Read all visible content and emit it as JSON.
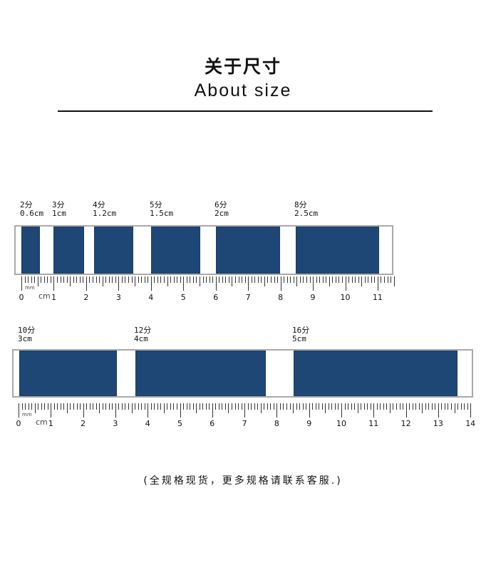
{
  "header": {
    "title_cn": "关于尺寸",
    "title_en": "About size"
  },
  "ribbon_color": "#1f4776",
  "rows": [
    {
      "ruler_max": 11,
      "unit": "cm",
      "small_unit": "mm",
      "items": [
        {
          "fen": "2分",
          "cm_label": "0.6cm",
          "width_cm": 0.6
        },
        {
          "fen": "3分",
          "cm_label": "1cm",
          "width_cm": 1
        },
        {
          "fen": "4分",
          "cm_label": "1.2cm",
          "width_cm": 1.2
        },
        {
          "fen": "5分",
          "cm_label": "1.5cm",
          "width_cm": 1.5
        },
        {
          "fen": "6分",
          "cm_label": "2cm",
          "width_cm": 2
        },
        {
          "fen": "8分",
          "cm_label": "2.5cm",
          "width_cm": 2.5
        }
      ]
    },
    {
      "ruler_max": 14,
      "unit": "cm",
      "small_unit": "mm",
      "items": [
        {
          "fen": "10分",
          "cm_label": "3cm",
          "width_cm": 3
        },
        {
          "fen": "12分",
          "cm_label": "4cm",
          "width_cm": 4
        },
        {
          "fen": "16分",
          "cm_label": "5cm",
          "width_cm": 5
        }
      ]
    }
  ],
  "footer": "(全规格现货，更多规格请联系客服.)"
}
